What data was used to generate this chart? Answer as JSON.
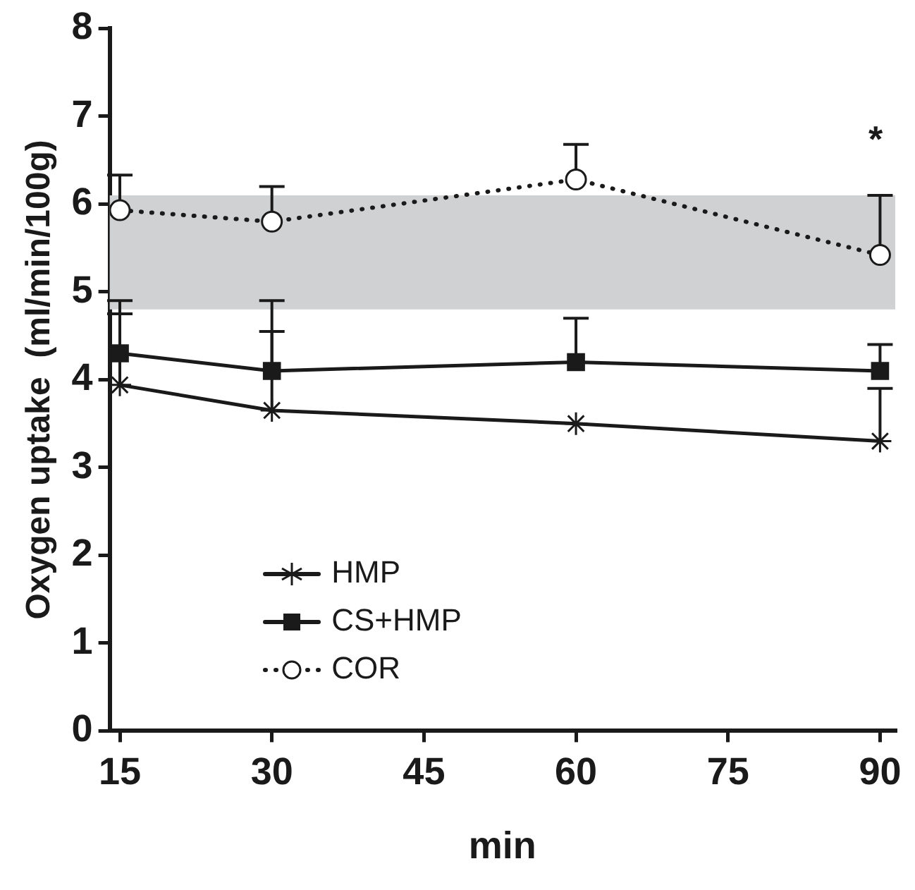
{
  "chart_data": {
    "type": "line",
    "xlabel": "min",
    "ylabel": "Oxygen uptake  (ml/min/100g)",
    "x": [
      15,
      30,
      60,
      90
    ],
    "xlim": [
      14,
      91.5
    ],
    "xticks": [
      15,
      30,
      45,
      60,
      75,
      90
    ],
    "ylim": [
      0,
      8
    ],
    "yticks": [
      0,
      1,
      2,
      3,
      4,
      5,
      6,
      7,
      8
    ],
    "grid": false,
    "legend": "bottom left",
    "series": [
      {
        "name": "HMP",
        "color": "#1a1a1a",
        "marker": "cross",
        "line_style": "solid",
        "values": [
          3.94,
          3.65,
          3.5,
          3.3
        ],
        "errors": [
          [
            3.94,
            4.75
          ],
          [
            3.65,
            4.55
          ],
          null,
          [
            3.3,
            3.9
          ]
        ]
      },
      {
        "name": "CS+HMP",
        "color": "#1a1a1a",
        "marker": "square",
        "line_style": "solid",
        "values": [
          4.3,
          4.1,
          4.2,
          4.1
        ],
        "errors": [
          [
            4.3,
            4.9
          ],
          [
            4.1,
            4.9
          ],
          [
            4.2,
            4.7
          ],
          [
            4.1,
            4.4
          ]
        ]
      },
      {
        "name": "COR",
        "color": "#1a1a1a",
        "marker": "circle",
        "line_style": "dotted",
        "values": [
          5.93,
          5.8,
          6.28,
          5.42
        ],
        "errors": [
          [
            5.93,
            6.33
          ],
          [
            5.8,
            6.2
          ],
          [
            6.28,
            6.68
          ],
          [
            5.42,
            6.1
          ]
        ]
      }
    ],
    "bands": [
      {
        "axis": "y",
        "from": 4.8,
        "to": 6.1,
        "color": "#d0d1d3"
      }
    ],
    "annotations": [
      "*"
    ]
  }
}
